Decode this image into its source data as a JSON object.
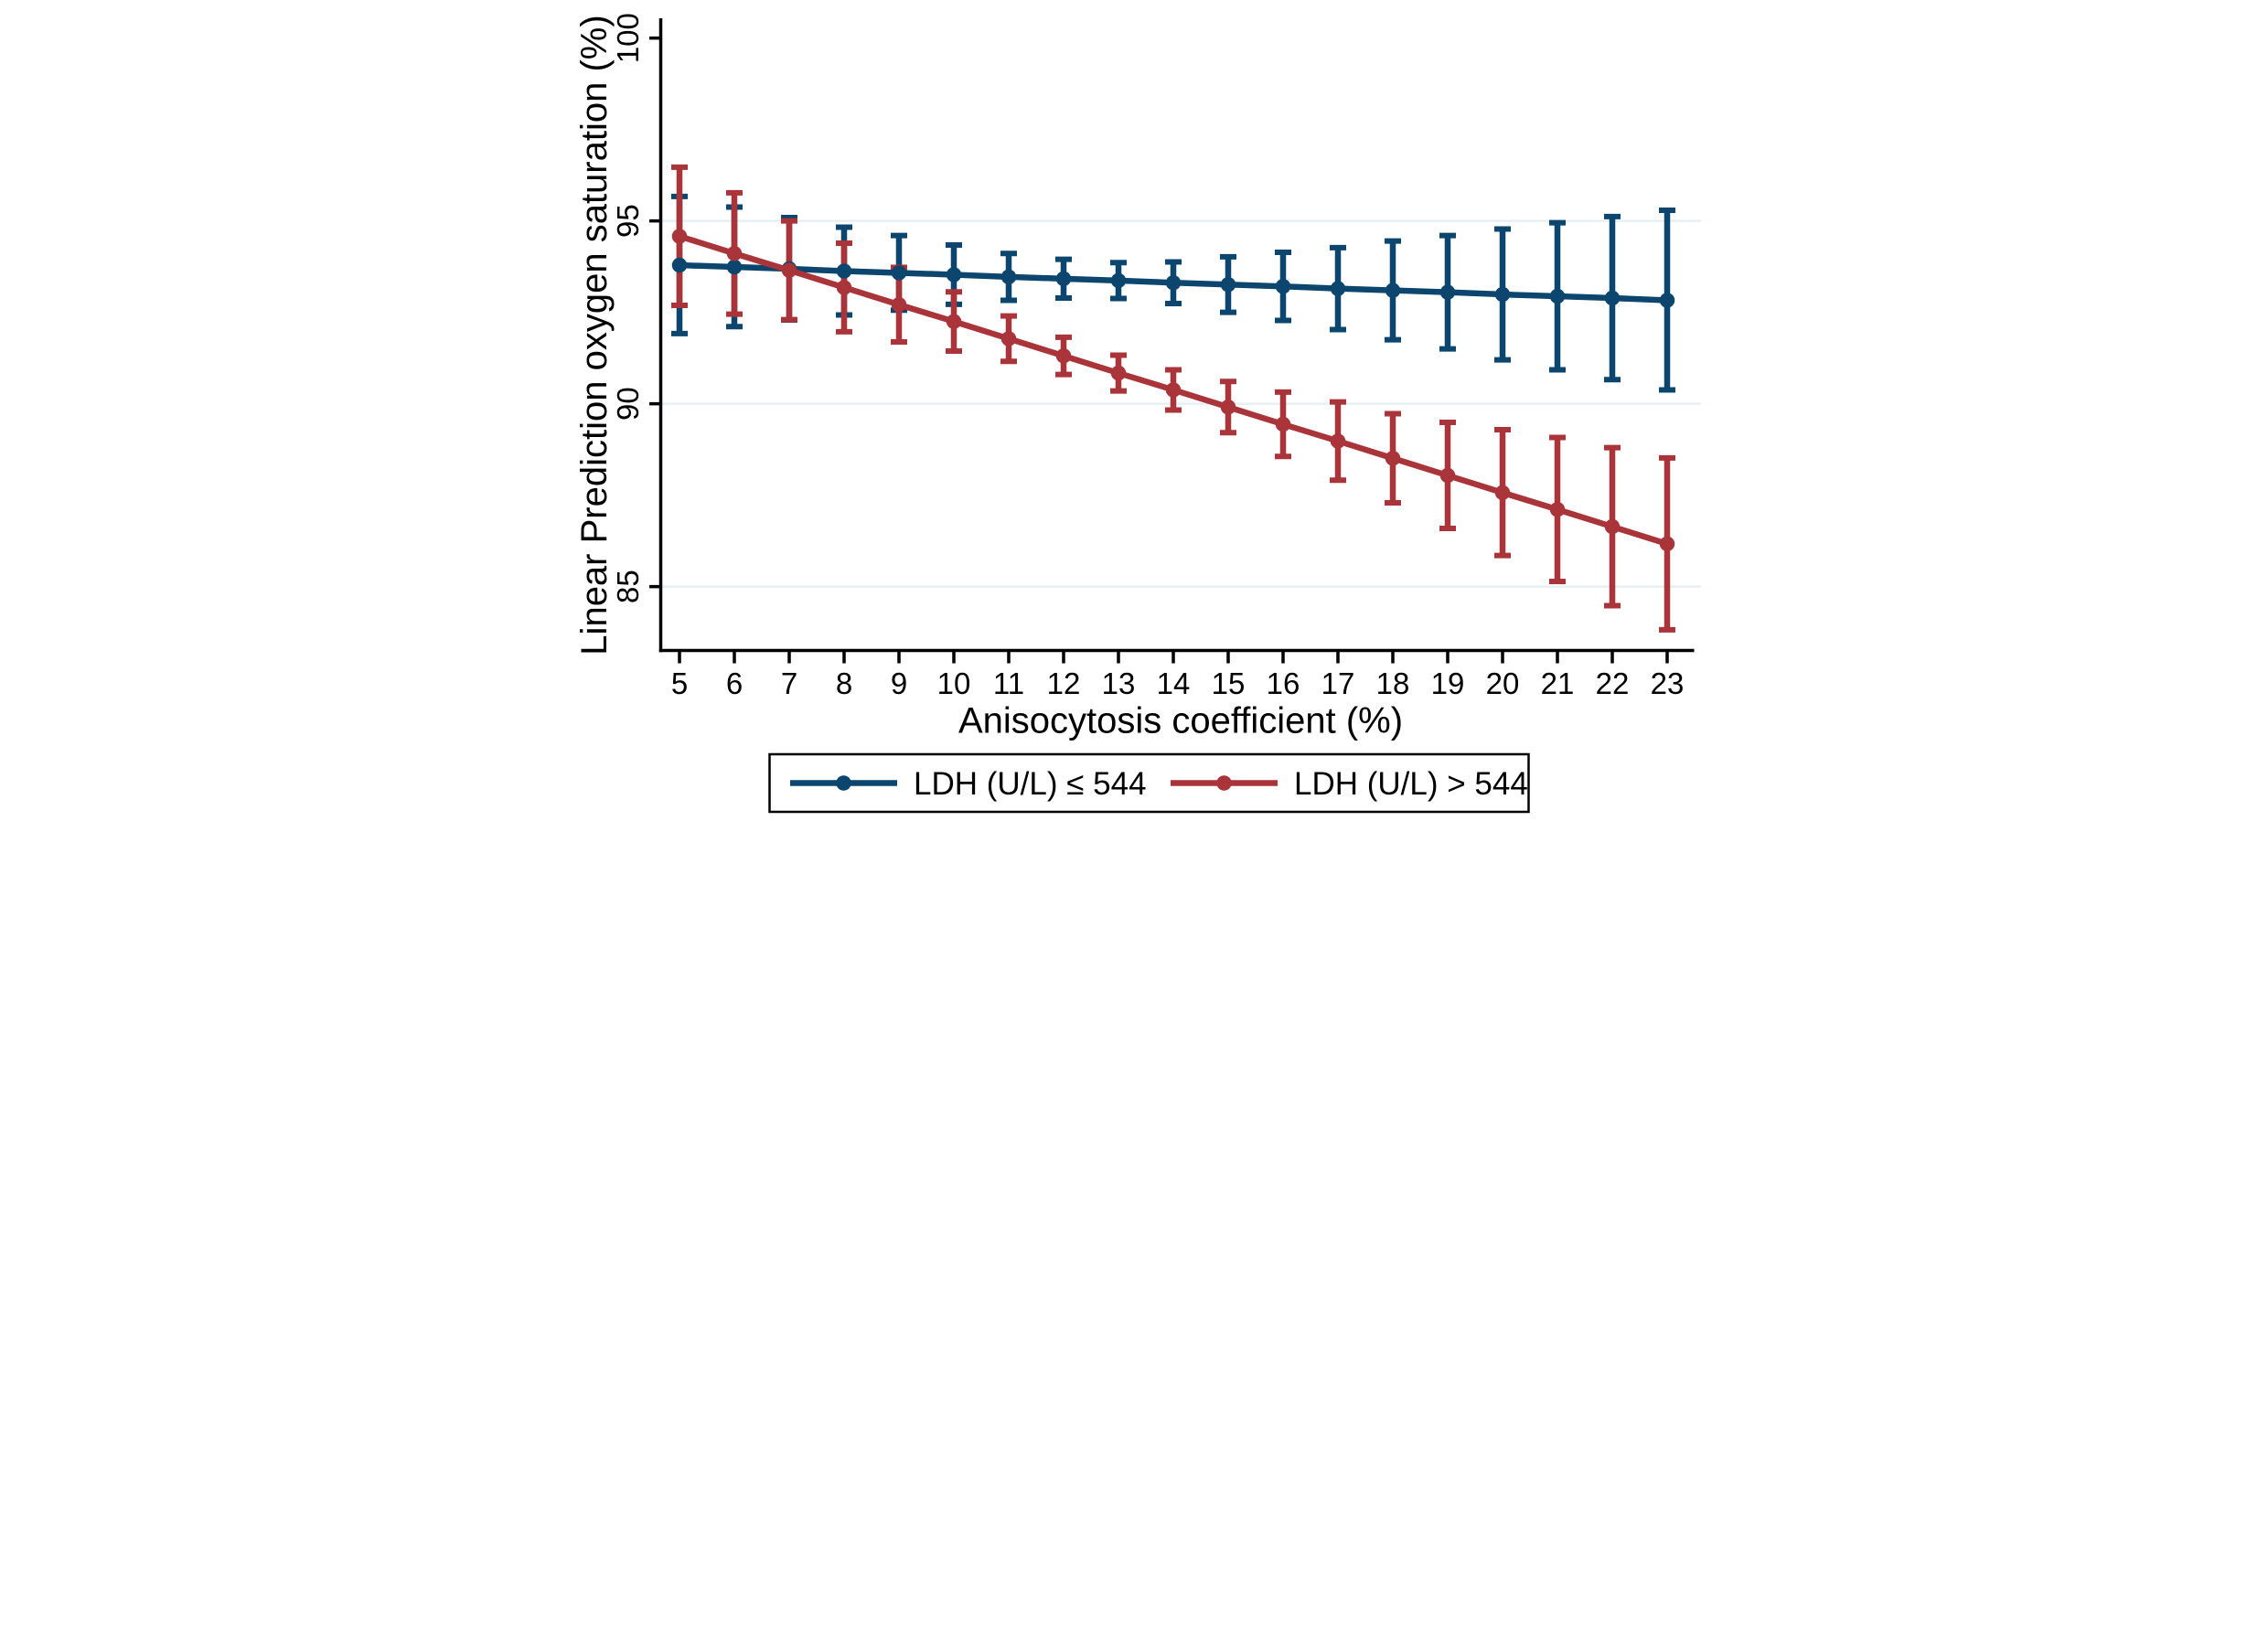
{
  "figure": {
    "background": "#ffffff",
    "colors": {
      "axis": "#000000",
      "grid": "#e6f0f2",
      "legend_border": "#000000",
      "series1": "#0c466e",
      "series2": "#a93439"
    },
    "grid_values": [
      95,
      90,
      85
    ],
    "legend": {
      "items": [
        {
          "label": "LDH (U/L) ≤ 544",
          "color": "#0c466e"
        },
        {
          "label": "LDH (U/L) > 544",
          "color": "#a93439"
        }
      ]
    }
  },
  "chart_data": {
    "type": "line",
    "error_bars": true,
    "title": "",
    "xlabel": "Anisocytosis coefficient (%)",
    "ylabel": "Linear Prediction oxygen saturation (%)",
    "x": [
      5,
      6,
      7,
      8,
      9,
      10,
      11,
      12,
      13,
      14,
      15,
      16,
      17,
      18,
      19,
      20,
      21,
      22,
      23
    ],
    "xticks": [
      5,
      6,
      7,
      8,
      9,
      10,
      11,
      12,
      13,
      14,
      15,
      16,
      17,
      18,
      19,
      20,
      21,
      22,
      23
    ],
    "yticks": [
      85,
      90,
      95,
      100
    ],
    "ylim": [
      83.2,
      100.5
    ],
    "grid": true,
    "legend_position": "bottom",
    "series": [
      {
        "name": "LDH (U/L) ≤ 544",
        "color": "#0c466e",
        "values": [
          93.79,
          93.74,
          93.69,
          93.63,
          93.58,
          93.53,
          93.47,
          93.42,
          93.37,
          93.31,
          93.26,
          93.21,
          93.15,
          93.1,
          93.05,
          92.99,
          92.94,
          92.89,
          92.83
        ],
        "ci_low": [
          91.92,
          92.11,
          92.29,
          92.43,
          92.56,
          92.72,
          92.83,
          92.89,
          92.88,
          92.74,
          92.5,
          92.28,
          92.03,
          91.75,
          91.5,
          91.2,
          90.93,
          90.66,
          90.38
        ],
        "ci_high": [
          95.67,
          95.38,
          95.09,
          94.83,
          94.6,
          94.34,
          94.11,
          93.95,
          93.86,
          93.88,
          94.02,
          94.14,
          94.27,
          94.45,
          94.6,
          94.78,
          94.95,
          95.12,
          95.29
        ]
      },
      {
        "name": "LDH (U/L) > 544",
        "color": "#a93439",
        "values": [
          94.58,
          94.11,
          93.65,
          93.18,
          92.71,
          92.25,
          91.78,
          91.31,
          90.84,
          90.38,
          89.91,
          89.44,
          88.98,
          88.51,
          88.04,
          87.57,
          87.11,
          86.64,
          86.17
        ],
        "ci_low": [
          92.69,
          92.45,
          92.3,
          91.97,
          91.69,
          91.44,
          91.16,
          90.8,
          90.35,
          89.83,
          89.21,
          88.56,
          87.91,
          87.29,
          86.59,
          85.85,
          85.14,
          84.48,
          83.82
        ],
        "ci_high": [
          96.47,
          95.77,
          95.0,
          94.39,
          93.73,
          93.06,
          92.4,
          91.82,
          91.33,
          90.93,
          90.61,
          90.32,
          90.05,
          89.73,
          89.49,
          89.29,
          89.08,
          88.8,
          88.52
        ]
      }
    ]
  }
}
